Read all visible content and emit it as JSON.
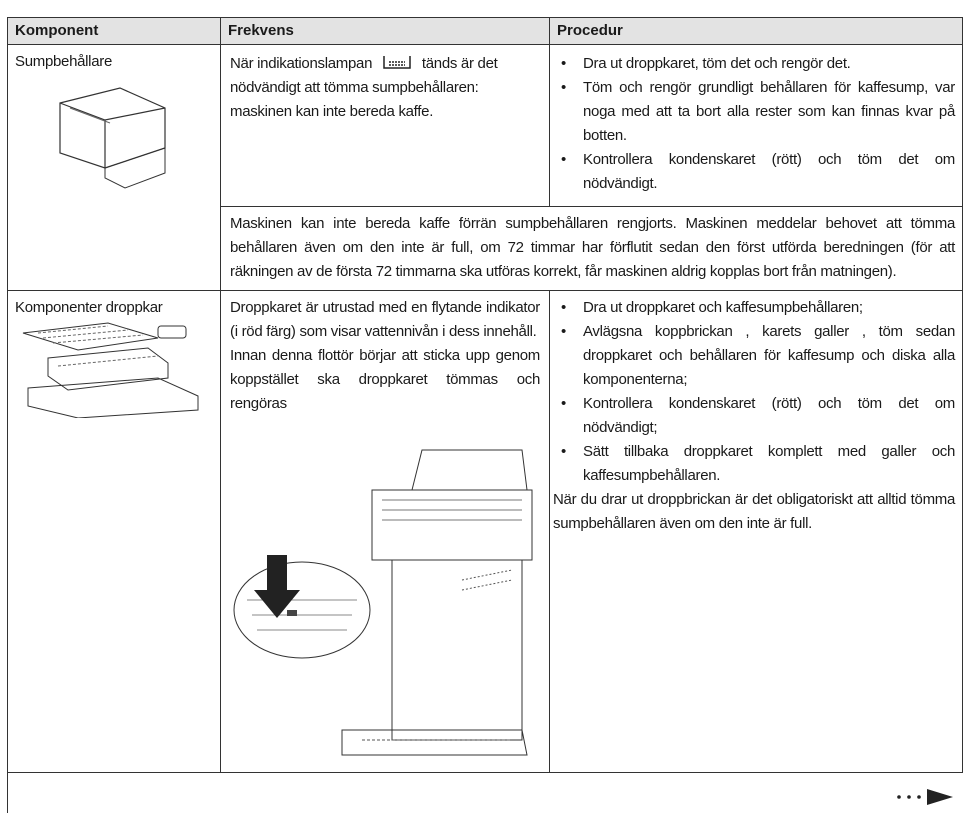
{
  "table": {
    "header": [
      "Komponent",
      "Frekvens",
      "Procedur"
    ],
    "rows": [
      {
        "component": "Sumpbehållare",
        "frequency": [
          "När indikationslampan",
          "tänds är det nödvändigt att tömma sumpbehållaren: maskinen kan inte bereda kaffe."
        ],
        "procedure": [
          "Dra ut droppkaret, töm det och rengör det.",
          "Töm och rengör grundligt behållaren för kaffesump, var noga med att ta bort alla rester som kan finnas kvar på botten.",
          "Kontrollera kondenskaret (rött) och töm det om nödvändigt."
        ],
        "note": "Maskinen kan inte bereda kaffe förrän sumpbehållaren rengjorts. Maskinen meddelar behovet att tömma behållaren även om den inte är full, om 72 timmar har förflutit sedan den först utförda beredningen (för att räkningen av de första 72 timmarna ska utföras korrekt, får maskinen aldrig kopplas bort från matningen)."
      },
      {
        "component": "Komponenter droppkar",
        "frequency": [
          "Droppkaret är utrustad med en flytande indikator (i röd färg) som visar vattennivån i dess innehåll.",
          "Innan denna flottör börjar att sticka upp genom koppstället ska droppkaret tömmas och rengöras"
        ],
        "procedure": [
          "Dra ut droppkaret och kaffesumpbehållaren;",
          "Avlägsna koppbrickan , karets galler , töm sedan droppkaret och behållaren för kaffesump och diska alla komponenterna;",
          "Kontrollera kondenskaret (rött) och töm det om nödvändigt;",
          "Sätt tillbaka droppkaret komplett med galler och kaffesumpbehållaren."
        ],
        "procedure_note": "När du drar ut droppbrickan är det obligatoriskt att alltid tömma sumpbehållaren även om den inte är full."
      }
    ]
  }
}
